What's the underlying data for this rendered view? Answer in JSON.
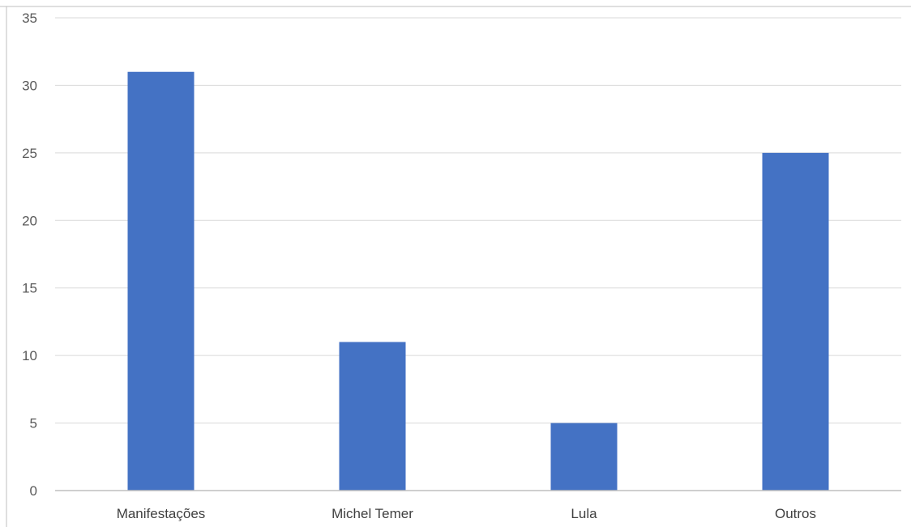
{
  "colors": {
    "bar": "#4472c4",
    "grid": "#d9d9d9",
    "tick_text": "#595959"
  },
  "chart_data": {
    "type": "bar",
    "categories": [
      "Manifestações",
      "Michel Temer",
      "Lula",
      "Outros"
    ],
    "values": [
      31,
      11,
      5,
      25
    ],
    "title": "",
    "xlabel": "",
    "ylabel": "",
    "ylim": [
      0,
      35
    ],
    "yticks": [
      0,
      5,
      10,
      15,
      20,
      25,
      30,
      35
    ],
    "grid": true,
    "legend": "none"
  }
}
